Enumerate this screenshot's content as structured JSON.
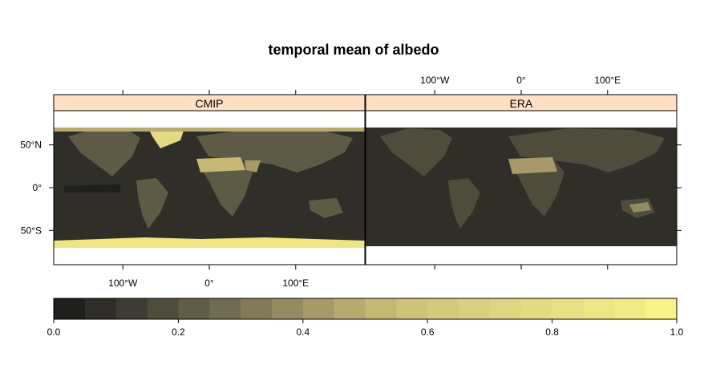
{
  "chart_data": {
    "type": "heatmap",
    "title": "temporal mean of albedo",
    "panels": [
      {
        "name": "CMIP"
      },
      {
        "name": "ERA"
      }
    ],
    "x_ticks": [
      {
        "value": -100,
        "label": "100°W"
      },
      {
        "value": 0,
        "label": "0°"
      },
      {
        "value": 100,
        "label": "100°E"
      }
    ],
    "y_ticks": [
      {
        "value": 50,
        "label": "50°N"
      },
      {
        "value": 0,
        "label": "0°"
      },
      {
        "value": -50,
        "label": "50°S"
      }
    ],
    "xlim": [
      -180,
      180
    ],
    "ylim": [
      -90,
      90
    ],
    "colorbar": {
      "min": 0.0,
      "max": 1.0,
      "step": 0.05,
      "ticks": [
        {
          "value": 0.0,
          "label": "0.0"
        },
        {
          "value": 0.2,
          "label": "0.2"
        },
        {
          "value": 0.4,
          "label": "0.4"
        },
        {
          "value": 0.6,
          "label": "0.6"
        },
        {
          "value": 0.8,
          "label": "0.8"
        },
        {
          "value": 1.0,
          "label": "1.0"
        }
      ],
      "colors": [
        "#1e1e1c",
        "#2e2d28",
        "#3e3c32",
        "#4f4c3c",
        "#605c46",
        "#716b50",
        "#837a58",
        "#958a60",
        "#a79a68",
        "#b8aa6e",
        "#c6b873",
        "#d0c278",
        "#d7c97c",
        "#dccf7f",
        "#e0d480",
        "#e5da82",
        "#e9df84",
        "#eee584",
        "#f3ea86",
        "#fbf28a"
      ]
    },
    "grid": false,
    "legend": "bottom colorbar"
  }
}
